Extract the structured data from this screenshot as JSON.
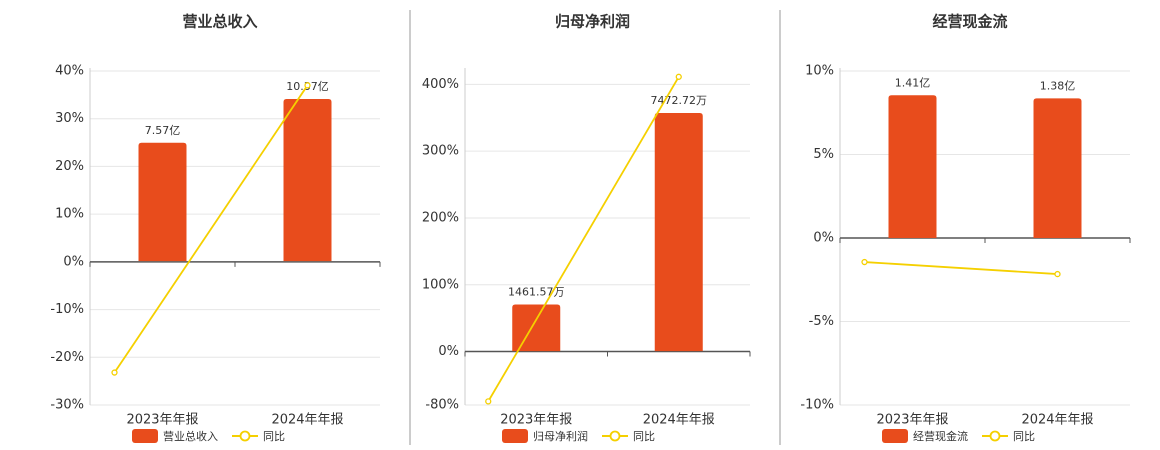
{
  "chart_data": [
    {
      "type": "bar",
      "title": "营业总收入",
      "categories": [
        "2023年年报",
        "2024年年报"
      ],
      "series": [
        {
          "name": "营业总收入",
          "type": "bar",
          "color": "#e84c1c",
          "axis": "y2",
          "values": [
            7.57,
            10.37
          ],
          "value_labels": [
            "7.57亿",
            "10.37亿"
          ]
        },
        {
          "name": "同比",
          "type": "line",
          "color": "#f5d000",
          "values": [
            -23.2,
            37.0
          ]
        }
      ],
      "ylim": [
        -30,
        40
      ],
      "yticks": [
        {
          "value": -30,
          "label": "-30%"
        },
        {
          "value": -20,
          "label": "-20%"
        },
        {
          "value": -10,
          "label": "-10%"
        },
        {
          "value": 0,
          "label": "0%"
        },
        {
          "value": 10,
          "label": "10%"
        },
        {
          "value": 20,
          "label": "20%"
        },
        {
          "value": 30,
          "label": "30%"
        },
        {
          "value": 40,
          "label": "40%"
        }
      ],
      "y2lim": [
        -9.2,
        12.16
      ],
      "grid": true
    },
    {
      "type": "bar",
      "title": "归母净利润",
      "categories": [
        "2023年年报",
        "2024年年报"
      ],
      "series": [
        {
          "name": "归母净利润",
          "type": "bar",
          "color": "#e84c1c",
          "axis": "y2",
          "values": [
            1461.57,
            7472.72
          ],
          "value_labels": [
            "1461.57万",
            "7472.72万"
          ]
        },
        {
          "name": "同比",
          "type": "line",
          "color": "#f5d000",
          "values": [
            -74.6,
            411.3
          ]
        }
      ],
      "ylim": [
        -80,
        420
      ],
      "yticks": [
        {
          "value": -80,
          "label": "-80%"
        },
        {
          "value": 0,
          "label": "0%"
        },
        {
          "value": 100,
          "label": "100%"
        },
        {
          "value": 200,
          "label": "200%"
        },
        {
          "value": 300,
          "label": "300%"
        },
        {
          "value": 400,
          "label": "400%"
        }
      ],
      "y2lim": [
        -1690,
        8790
      ],
      "grid": true
    },
    {
      "type": "bar",
      "title": "经营现金流",
      "categories": [
        "2023年年报",
        "2024年年报"
      ],
      "series": [
        {
          "name": "经营现金流",
          "type": "bar",
          "color": "#e84c1c",
          "axis": "y2",
          "values": [
            1.41,
            1.38
          ],
          "value_labels": [
            "1.41亿",
            "1.38亿"
          ]
        },
        {
          "name": "同比",
          "type": "line",
          "color": "#f5d000",
          "values": [
            -1.44,
            -2.16
          ]
        }
      ],
      "ylim": [
        -10,
        10
      ],
      "yticks": [
        {
          "value": -10,
          "label": "-10%"
        },
        {
          "value": -5,
          "label": "-5%"
        },
        {
          "value": 0,
          "label": "0%"
        },
        {
          "value": 5,
          "label": "5%"
        },
        {
          "value": 10,
          "label": "10%"
        }
      ],
      "y2lim": [
        -1.65,
        1.65
      ],
      "grid": true
    }
  ]
}
